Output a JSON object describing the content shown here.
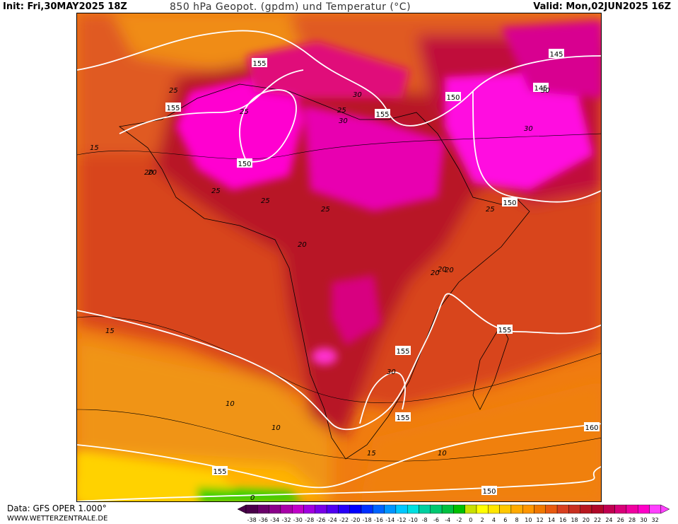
{
  "header": {
    "init": "Init: Fri,30MAY2025 18Z",
    "title": "850 hPa Geopot. (gpdm) und Temperatur (°C)",
    "valid": "Valid: Mon,02JUN2025 16Z"
  },
  "footer": {
    "data_source": "Data: GFS OPER 1.000°",
    "website": "WWW.WETTERZENTRALE.DE"
  },
  "legend": {
    "ticks": [
      "-38",
      "-36",
      "-34",
      "-32",
      "-30",
      "-28",
      "-26",
      "-24",
      "-22",
      "-20",
      "-18",
      "-16",
      "-14",
      "-12",
      "-10",
      "-8",
      "-6",
      "-4",
      "-2",
      "0",
      "2",
      "4",
      "6",
      "8",
      "10",
      "12",
      "14",
      "16",
      "18",
      "20",
      "22",
      "24",
      "26",
      "28",
      "30",
      "32"
    ],
    "colors": [
      "#4a004a",
      "#6a006a",
      "#8a008a",
      "#a800a8",
      "#c000c8",
      "#a000e0",
      "#7800e8",
      "#5000f0",
      "#2800f8",
      "#0000ff",
      "#0030ff",
      "#0064ff",
      "#0096ff",
      "#00c8ff",
      "#00e0e0",
      "#00d0a0",
      "#00c870",
      "#00c040",
      "#00c000",
      "#c8e000",
      "#ffff00",
      "#ffe600",
      "#ffc800",
      "#ffaa00",
      "#ff9600",
      "#f07800",
      "#e85a10",
      "#d84020",
      "#c83020",
      "#b81820",
      "#b00828",
      "#c00050",
      "#d80078",
      "#f000a0",
      "#ff00c8",
      "#ff40ff"
    ]
  },
  "map": {
    "geopotential_labels": [
      "155",
      "145",
      "145",
      "150",
      "155",
      "155",
      "150",
      "150",
      "155",
      "155",
      "155",
      "160",
      "155",
      "150"
    ],
    "temperature_labels": [
      "25",
      "25",
      "25",
      "30",
      "25",
      "30",
      "30",
      "30",
      "25",
      "20",
      "20",
      "25",
      "15",
      "20",
      "25",
      "20",
      "20",
      "20",
      "15",
      "10",
      "10",
      "15",
      "10",
      "30",
      "0"
    ]
  }
}
